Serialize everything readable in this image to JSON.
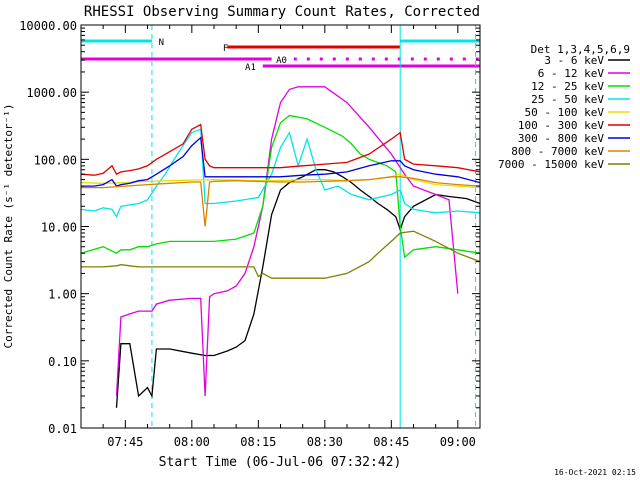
{
  "chart_data": {
    "type": "line",
    "title": "RHESSI Observing Summary Count Rates, Corrected",
    "xlabel": "Start Time (06-Jul-06 07:32:42)",
    "ylabel": "Corrected Count Rate (s⁻¹ detector⁻¹)",
    "yscale": "log",
    "ylim": [
      0.01,
      10000
    ],
    "xlim_minutes_since_0730": [
      5,
      95
    ],
    "ytick_values": [
      0.01,
      0.1,
      1,
      10,
      100,
      1000,
      10000
    ],
    "ytick_labels": [
      "0.01",
      "0.10",
      "1.00",
      "10.00",
      "100.00",
      "1000.00",
      "10000.00"
    ],
    "xtick_minutes_since_0730": [
      15,
      30,
      45,
      60,
      75,
      90
    ],
    "xtick_labels": [
      "07:45",
      "08:00",
      "08:15",
      "08:30",
      "08:45",
      "09:00"
    ],
    "legend": {
      "title": "Det 1,3,4,5,6,9",
      "placement": "right"
    },
    "flags": [
      {
        "label": "N",
        "color": "#00e5e5",
        "segments": [
          [
            5,
            21
          ],
          [
            77,
            95
          ]
        ]
      },
      {
        "label": "F",
        "color": "#e00000",
        "segments": [
          [
            38,
            77
          ]
        ]
      },
      {
        "label": "A0",
        "color": "#e000e0",
        "segments": [
          [
            5,
            48
          ],
          [
            53,
            95
          ]
        ]
      },
      {
        "label": "A1",
        "color": "#e000e0",
        "segments": [
          [
            46,
            95
          ]
        ]
      }
    ],
    "vlines": [
      {
        "x": 5,
        "color": "#00e5e5",
        "style": "solid"
      },
      {
        "x": 21,
        "color": "#00e5e5",
        "style": "dashed"
      },
      {
        "x": 77,
        "color": "#00e5e5",
        "style": "solid"
      },
      {
        "x": 94,
        "color": "#00e5e5",
        "style": "dashed"
      }
    ],
    "series": [
      {
        "name": "3 - 6 keV",
        "color": "#000000",
        "x": [
          13,
          14,
          16,
          18,
          20,
          21,
          22,
          25,
          30,
          33,
          35,
          38,
          40,
          42,
          44,
          46,
          48,
          50,
          52,
          55,
          58,
          60,
          62,
          64,
          66,
          68,
          70,
          72,
          74,
          76,
          77,
          78,
          80,
          85,
          88,
          90,
          92,
          95
        ],
        "y": [
          0.02,
          0.18,
          0.18,
          0.03,
          0.04,
          0.03,
          0.15,
          0.15,
          0.13,
          0.12,
          0.12,
          0.14,
          0.16,
          0.2,
          0.5,
          2.5,
          15,
          35,
          45,
          55,
          70,
          70,
          65,
          55,
          45,
          35,
          28,
          22,
          18,
          14,
          9,
          14,
          20,
          30,
          28,
          27,
          26,
          22
        ]
      },
      {
        "name": "6 - 12 keV",
        "color": "#e000e0",
        "x": [
          13,
          14,
          16,
          18,
          20,
          21,
          22,
          25,
          30,
          32,
          33,
          34,
          35,
          38,
          40,
          42,
          44,
          46,
          48,
          50,
          52,
          54,
          56,
          60,
          65,
          70,
          75,
          78,
          80,
          85,
          88,
          90
        ],
        "y": [
          0.03,
          0.45,
          0.5,
          0.55,
          0.55,
          0.55,
          0.7,
          0.8,
          0.85,
          0.85,
          0.03,
          0.9,
          1.0,
          1.1,
          1.3,
          2.0,
          5,
          20,
          200,
          700,
          1100,
          1200,
          1200,
          1200,
          700,
          300,
          120,
          60,
          40,
          30,
          25,
          1.0
        ]
      },
      {
        "name": "12 - 25 keV",
        "color": "#00e000",
        "x": [
          5,
          10,
          13,
          14,
          16,
          18,
          20,
          22,
          25,
          30,
          33,
          35,
          40,
          44,
          46,
          48,
          50,
          52,
          56,
          60,
          64,
          66,
          68,
          70,
          74,
          76,
          77,
          78,
          80,
          85,
          90,
          95
        ],
        "y": [
          4.0,
          5.0,
          4.0,
          4.5,
          4.5,
          5.0,
          5.0,
          5.5,
          6.0,
          6.0,
          6.0,
          6.0,
          6.5,
          8.0,
          20,
          150,
          350,
          450,
          400,
          300,
          220,
          170,
          120,
          100,
          80,
          65,
          10,
          3.5,
          4.5,
          5.0,
          4.5,
          4.0
        ]
      },
      {
        "name": "25 - 50 keV",
        "color": "#00e5e5",
        "x": [
          5,
          8,
          10,
          12,
          13,
          14,
          16,
          18,
          20,
          22,
          24,
          26,
          28,
          30,
          32,
          33,
          35,
          40,
          45,
          48,
          50,
          52,
          54,
          56,
          58,
          60,
          63,
          66,
          70,
          75,
          77,
          78,
          80,
          85,
          90,
          95
        ],
        "y": [
          18,
          17,
          19,
          18,
          14,
          20,
          21,
          22,
          25,
          40,
          60,
          100,
          160,
          250,
          280,
          22,
          22,
          24,
          27,
          60,
          150,
          250,
          80,
          200,
          70,
          35,
          40,
          30,
          25,
          30,
          35,
          22,
          18,
          16,
          17,
          16
        ]
      },
      {
        "name": "50 - 100 keV",
        "color": "#e0e000",
        "x": [
          5,
          10,
          15,
          20,
          25,
          30,
          35,
          40,
          45,
          50,
          55,
          60,
          65,
          70,
          75,
          77,
          80,
          85,
          90,
          95
        ],
        "y": [
          45,
          44,
          45,
          47,
          48,
          49,
          50,
          49,
          48,
          48,
          50,
          50,
          48,
          50,
          55,
          60,
          50,
          42,
          40,
          38
        ]
      },
      {
        "name": "100 - 300 keV",
        "color": "#e00000",
        "x": [
          5,
          8,
          10,
          12,
          13,
          14,
          16,
          18,
          20,
          22,
          25,
          28,
          30,
          32,
          33,
          34,
          35,
          40,
          45,
          50,
          55,
          60,
          65,
          70,
          75,
          77,
          78,
          80,
          85,
          90,
          95
        ],
        "y": [
          60,
          58,
          62,
          80,
          60,
          65,
          68,
          72,
          80,
          100,
          130,
          170,
          280,
          330,
          100,
          80,
          75,
          75,
          75,
          75,
          80,
          85,
          90,
          120,
          200,
          250,
          100,
          85,
          80,
          75,
          65
        ]
      },
      {
        "name": "300 - 800 keV",
        "color": "#0000e0",
        "x": [
          5,
          8,
          10,
          12,
          13,
          14,
          16,
          18,
          20,
          22,
          25,
          28,
          30,
          32,
          33,
          34,
          35,
          40,
          45,
          50,
          55,
          60,
          65,
          70,
          75,
          77,
          78,
          80,
          85,
          90,
          95
        ],
        "y": [
          40,
          40,
          42,
          50,
          40,
          42,
          44,
          48,
          50,
          60,
          80,
          110,
          160,
          210,
          55,
          55,
          55,
          55,
          55,
          55,
          58,
          60,
          65,
          80,
          95,
          95,
          80,
          70,
          60,
          55,
          45
        ]
      },
      {
        "name": "800 - 7000 keV",
        "color": "#e08000",
        "x": [
          5,
          10,
          15,
          20,
          25,
          30,
          32,
          33,
          34,
          35,
          40,
          45,
          50,
          55,
          60,
          65,
          70,
          75,
          77,
          80,
          85,
          90,
          95
        ],
        "y": [
          38,
          38,
          40,
          42,
          44,
          46,
          46,
          10,
          46,
          47,
          48,
          47,
          46,
          46,
          47,
          48,
          50,
          55,
          55,
          52,
          45,
          42,
          40
        ]
      },
      {
        "name": "7000 - 15000 keV",
        "color": "#808000",
        "x": [
          5,
          10,
          13,
          14,
          16,
          18,
          20,
          25,
          30,
          35,
          40,
          44,
          45,
          46,
          48,
          50,
          55,
          60,
          65,
          70,
          72,
          75,
          77,
          80,
          85,
          90,
          95
        ],
        "y": [
          2.5,
          2.5,
          2.6,
          2.7,
          2.6,
          2.5,
          2.5,
          2.5,
          2.5,
          2.5,
          2.5,
          2.5,
          1.8,
          2.0,
          1.7,
          1.7,
          1.7,
          1.7,
          2.0,
          3.0,
          4.0,
          6.0,
          8.0,
          8.5,
          6.0,
          4.0,
          3.0
        ]
      }
    ]
  },
  "footer_timestamp": "16-Oct-2021 02:15"
}
